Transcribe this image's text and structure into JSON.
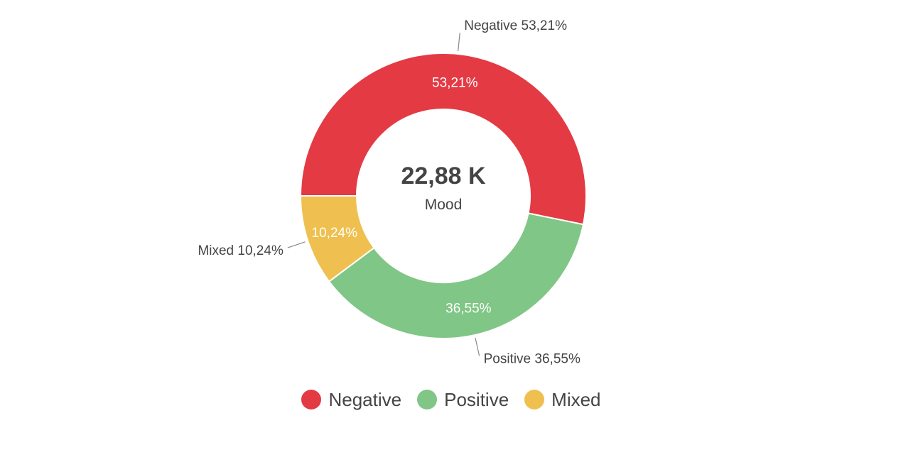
{
  "chart_data": {
    "type": "pie",
    "donut": true,
    "center_value": "22,88 K",
    "center_label": "Mood",
    "slices": [
      {
        "name": "Negative",
        "value": 53.21,
        "label": "53,21%",
        "callout": "Negative 53,21%",
        "color": "#e33a44"
      },
      {
        "name": "Positive",
        "value": 36.55,
        "label": "36,55%",
        "callout": "Positive 36,55%",
        "color": "#80c686"
      },
      {
        "name": "Mixed",
        "value": 10.24,
        "label": "10,24%",
        "callout": "Mixed 10,24%",
        "color": "#efc04f"
      }
    ],
    "legend": [
      "Negative",
      "Positive",
      "Mixed"
    ],
    "legend_position": "bottom"
  }
}
